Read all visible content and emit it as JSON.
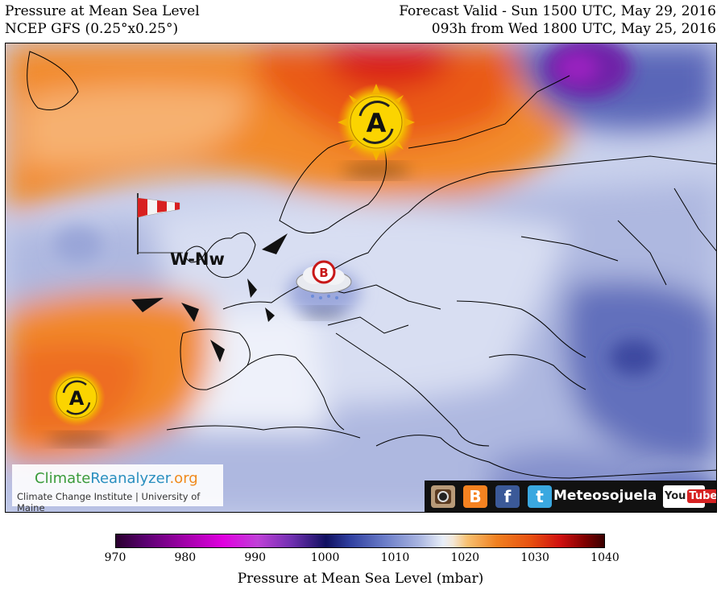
{
  "header": {
    "title": "Pressure at Mean Sea Level",
    "model": "NCEP GFS (0.25°x0.25°)",
    "valid": "Forecast Valid - Sun 1500 UTC, May 29, 2016",
    "run": "093h from Wed 1800 UTC, May 25, 2016"
  },
  "map": {
    "wind_label": "W-Nw",
    "high_symbol": "A",
    "low_symbol": "B"
  },
  "credits": {
    "logo_part1": "Climate",
    "logo_part2": "Reanalyzer",
    "logo_part3": ".org",
    "institution": "Climate Change Institute | University of Maine"
  },
  "social": {
    "name": "Meteosojuela",
    "youtube_a": "You",
    "youtube_b": "Tube",
    "icons": [
      "instagram-icon",
      "blogger-icon",
      "facebook-icon",
      "twitter-icon",
      "youtube-icon"
    ]
  },
  "colorbar": {
    "ticks": [
      "970",
      "980",
      "990",
      "1000",
      "1010",
      "1020",
      "1030",
      "1040"
    ],
    "min": 970,
    "max": 1040,
    "title": "Pressure at Mean Sea Level (mbar)"
  }
}
